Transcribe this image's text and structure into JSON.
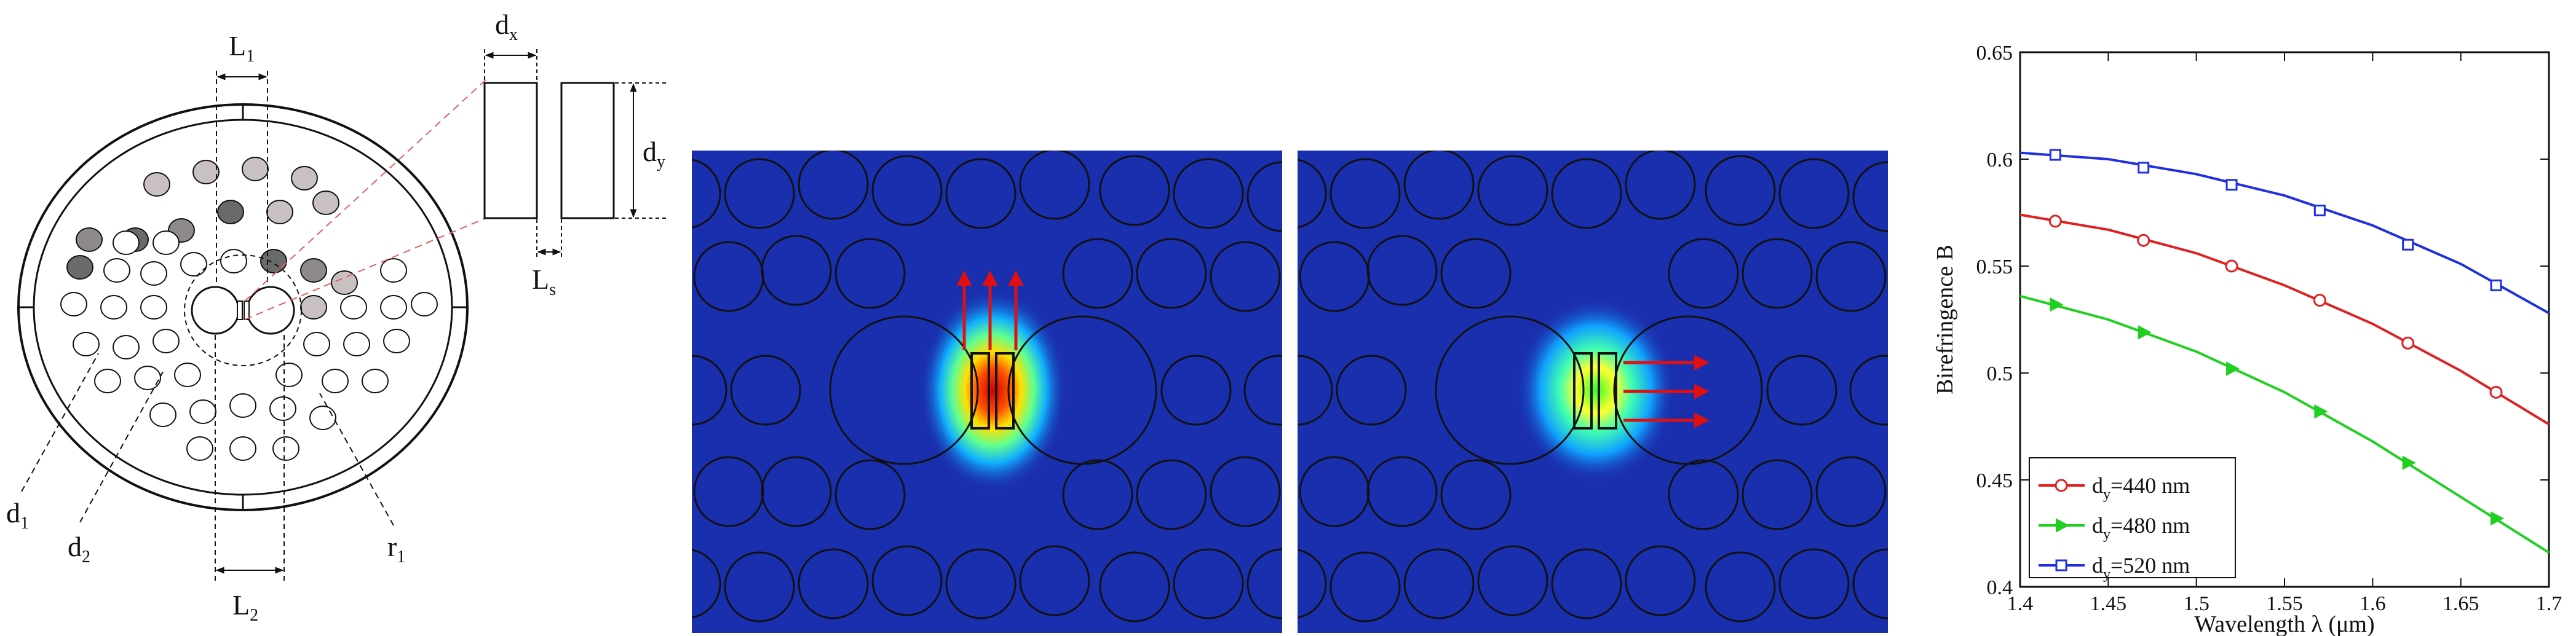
{
  "figure": {
    "panel_a": {
      "labels": {
        "L1": {
          "main": "L",
          "sub": "1"
        },
        "L2": {
          "main": "L",
          "sub": "2"
        },
        "dx": {
          "main": "d",
          "sub": "x"
        },
        "dy": {
          "main": "d",
          "sub": "y"
        },
        "Ls": {
          "main": "L",
          "sub": "s"
        },
        "d1": {
          "main": "d",
          "sub": "1"
        },
        "d2": {
          "main": "d",
          "sub": "2"
        },
        "r1": {
          "main": "r",
          "sub": "1"
        }
      },
      "colors": {
        "dark_hole": "#6a6a6a",
        "mid_hole": "#8f8a8a",
        "light_hole": "#c9c1c1",
        "zoom_line": "#e06060"
      }
    },
    "panel_b": {
      "mode_arrows_direction": "up",
      "colors": {
        "background": "#1a2fae",
        "arrow": "#e01010"
      }
    },
    "panel_c": {
      "mode_arrows_direction": "right",
      "colors": {
        "background": "#1a2fae",
        "arrow": "#e01010"
      }
    },
    "chart_data": {
      "type": "line",
      "xlabel": "Wavelength λ (μm)",
      "ylabel": "Birefringence B",
      "xlim": [
        1.4,
        1.7
      ],
      "ylim": [
        0.4,
        0.65
      ],
      "x_ticks": [
        "1.4",
        "1.45",
        "1.5",
        "1.55",
        "1.6",
        "1.65",
        "1.7"
      ],
      "y_ticks": [
        "0.4",
        "0.45",
        "0.5",
        "0.55",
        "0.6",
        "0.65"
      ],
      "legend_position": "bottom-left",
      "grid": false,
      "series": [
        {
          "name": "d",
          "name_sub": "y",
          "name_suffix": "=440 nm",
          "color": "#e02020",
          "marker": "circle",
          "x": [
            1.42,
            1.47,
            1.52,
            1.57,
            1.62,
            1.67
          ],
          "y": [
            0.571,
            0.562,
            0.55,
            0.534,
            0.514,
            0.491
          ],
          "curve_x": [
            1.4,
            1.45,
            1.5,
            1.55,
            1.6,
            1.65,
            1.7
          ],
          "curve_y": [
            0.574,
            0.567,
            0.556,
            0.541,
            0.523,
            0.501,
            0.476
          ]
        },
        {
          "name": "d",
          "name_sub": "y",
          "name_suffix": "=480 nm",
          "color": "#20d020",
          "marker": "triangle-right",
          "x": [
            1.42,
            1.47,
            1.52,
            1.57,
            1.62,
            1.67
          ],
          "y": [
            0.532,
            0.519,
            0.502,
            0.482,
            0.458,
            0.432
          ],
          "curve_x": [
            1.4,
            1.45,
            1.5,
            1.55,
            1.6,
            1.65,
            1.7
          ],
          "curve_y": [
            0.536,
            0.525,
            0.51,
            0.491,
            0.468,
            0.442,
            0.416
          ]
        },
        {
          "name": "d",
          "name_sub": "y",
          "name_suffix": "=520 nm",
          "color": "#2030e0",
          "marker": "square",
          "x": [
            1.42,
            1.47,
            1.52,
            1.57,
            1.62,
            1.67
          ],
          "y": [
            0.602,
            0.596,
            0.588,
            0.576,
            0.56,
            0.541
          ],
          "curve_x": [
            1.4,
            1.45,
            1.5,
            1.55,
            1.6,
            1.65,
            1.7
          ],
          "curve_y": [
            0.603,
            0.6,
            0.593,
            0.583,
            0.569,
            0.551,
            0.528
          ]
        }
      ]
    }
  }
}
